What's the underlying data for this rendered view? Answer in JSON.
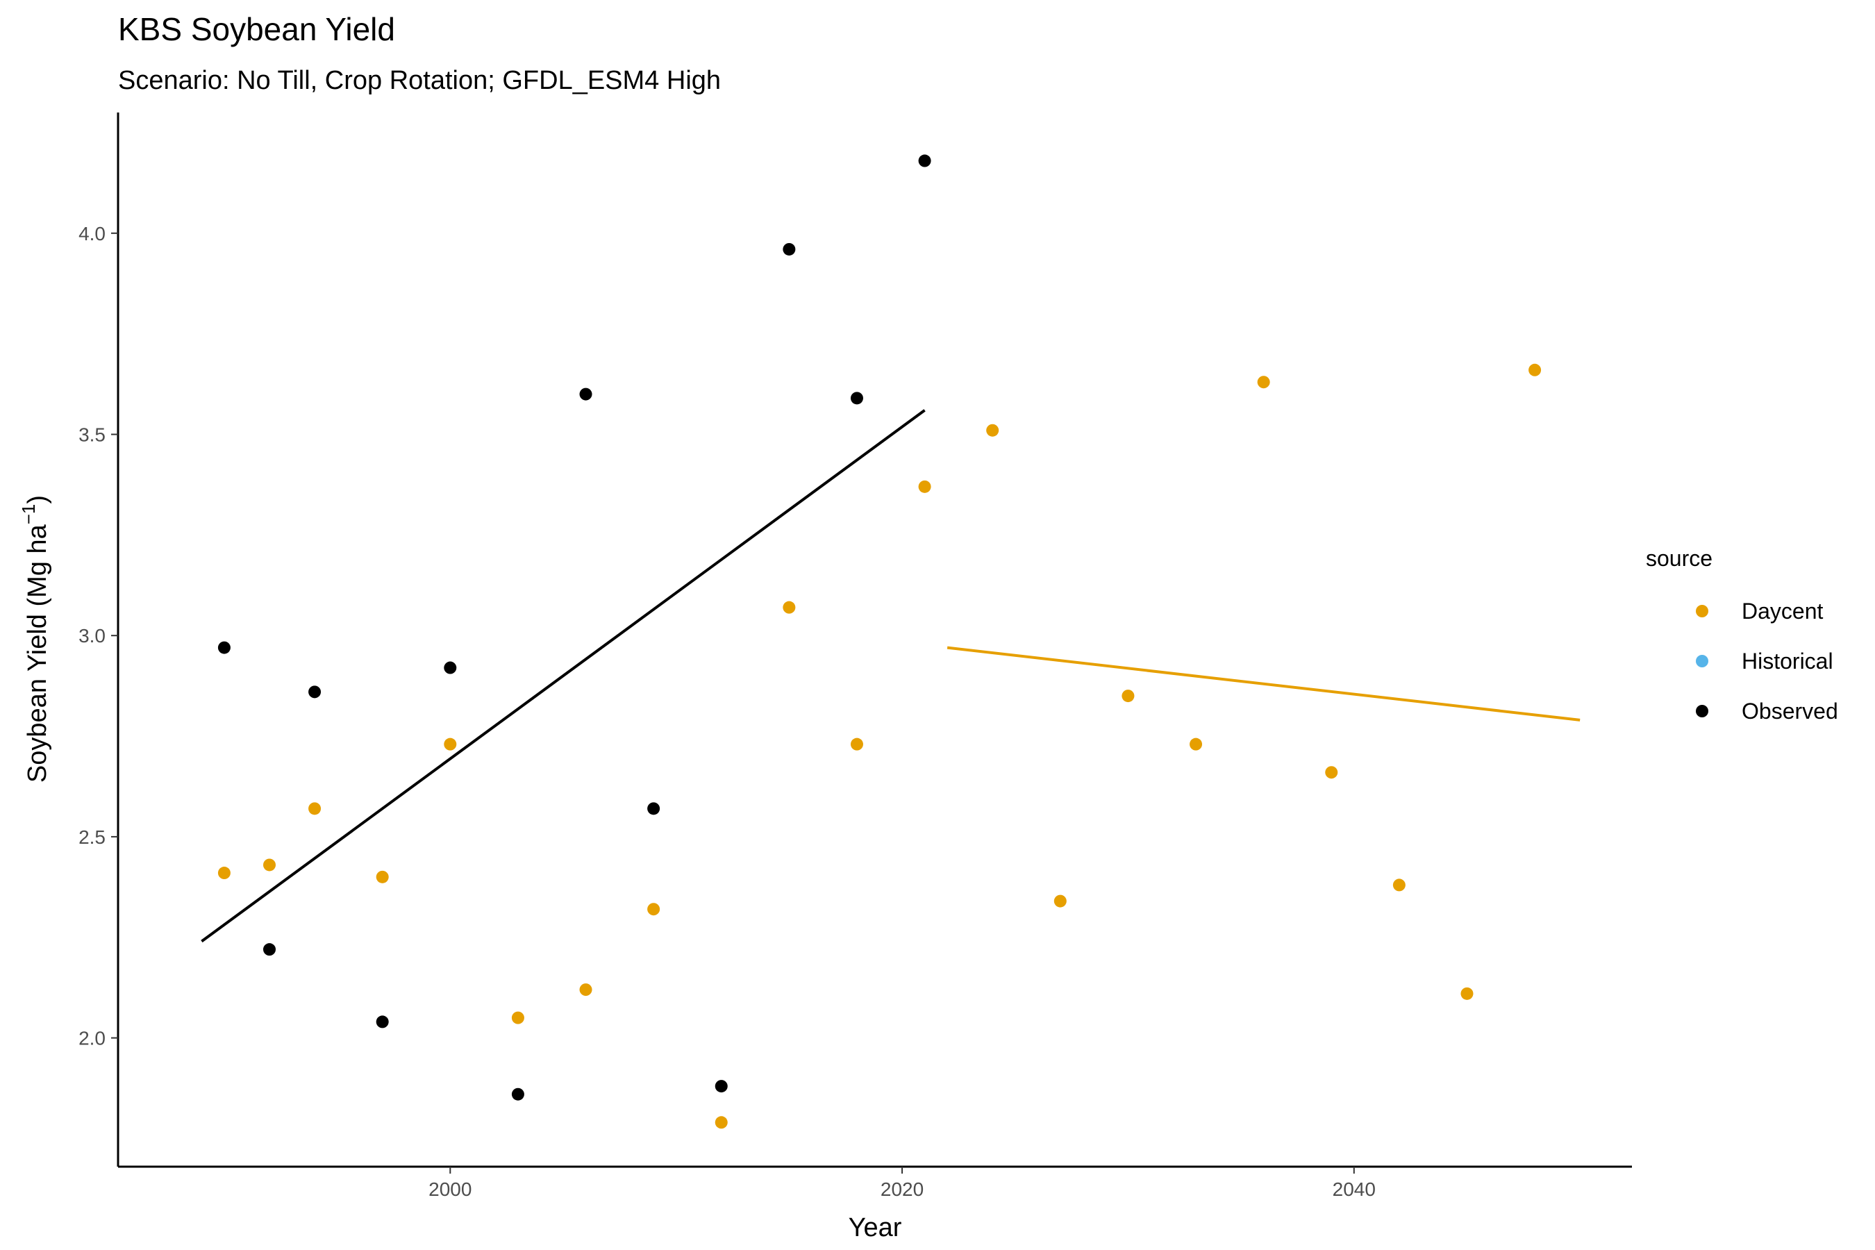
{
  "chart_data": {
    "type": "scatter",
    "title": "KBS Soybean Yield",
    "subtitle": "Scenario: No Till, Crop Rotation; GFDL_ESM4 High",
    "xlabel": "Year",
    "ylabel_main": "Soybean Yield (Mg ha",
    "ylabel_sup": "−1",
    "ylabel_close": ")",
    "xlim": [
      1985.3,
      2052.3
    ],
    "ylim": [
      1.68,
      4.3
    ],
    "x_ticks": [
      2000,
      2020,
      2040
    ],
    "x_tick_labels": [
      "2000",
      "2020",
      "2040"
    ],
    "y_ticks": [
      2.0,
      2.5,
      3.0,
      3.5,
      4.0
    ],
    "y_tick_labels": [
      "2.0",
      "2.5",
      "3.0",
      "3.5",
      "4.0"
    ],
    "grid": false,
    "legend": {
      "title": "source",
      "position": "right",
      "entries": [
        {
          "label": "Daycent",
          "color": "#E69F00"
        },
        {
          "label": "Historical",
          "color": "#56B4E9"
        },
        {
          "label": "Observed",
          "color": "#000000"
        }
      ]
    },
    "series": [
      {
        "name": "Observed",
        "color": "#000000",
        "points": [
          {
            "x": 1990,
            "y": 2.97
          },
          {
            "x": 1992,
            "y": 2.22
          },
          {
            "x": 1994,
            "y": 2.86
          },
          {
            "x": 1997,
            "y": 2.04
          },
          {
            "x": 2000,
            "y": 2.92
          },
          {
            "x": 2003,
            "y": 1.86
          },
          {
            "x": 2006,
            "y": 3.6
          },
          {
            "x": 2009,
            "y": 2.57
          },
          {
            "x": 2012,
            "y": 1.88
          },
          {
            "x": 2015,
            "y": 3.96
          },
          {
            "x": 2018,
            "y": 3.59
          },
          {
            "x": 2021,
            "y": 4.18
          }
        ],
        "trend": {
          "x": [
            1989,
            2021
          ],
          "y": [
            2.24,
            3.56
          ]
        }
      },
      {
        "name": "Daycent",
        "color": "#E69F00",
        "points": [
          {
            "x": 1990,
            "y": 2.41
          },
          {
            "x": 1992,
            "y": 2.43
          },
          {
            "x": 1994,
            "y": 2.57
          },
          {
            "x": 1997,
            "y": 2.4
          },
          {
            "x": 2000,
            "y": 2.73
          },
          {
            "x": 2003,
            "y": 2.05
          },
          {
            "x": 2006,
            "y": 2.12
          },
          {
            "x": 2009,
            "y": 2.32
          },
          {
            "x": 2012,
            "y": 1.79
          },
          {
            "x": 2015,
            "y": 3.07
          },
          {
            "x": 2018,
            "y": 2.73
          },
          {
            "x": 2021,
            "y": 3.37
          },
          {
            "x": 2024,
            "y": 3.51
          },
          {
            "x": 2027,
            "y": 2.34
          },
          {
            "x": 2030,
            "y": 2.85
          },
          {
            "x": 2033,
            "y": 2.73
          },
          {
            "x": 2036,
            "y": 3.63
          },
          {
            "x": 2039,
            "y": 2.66
          },
          {
            "x": 2042,
            "y": 2.38
          },
          {
            "x": 2045,
            "y": 2.11
          },
          {
            "x": 2048,
            "y": 3.66
          }
        ],
        "trend": {
          "x": [
            2022,
            2050
          ],
          "y": [
            2.97,
            2.79
          ]
        }
      },
      {
        "name": "Historical",
        "color": "#56B4E9",
        "points": []
      }
    ]
  }
}
